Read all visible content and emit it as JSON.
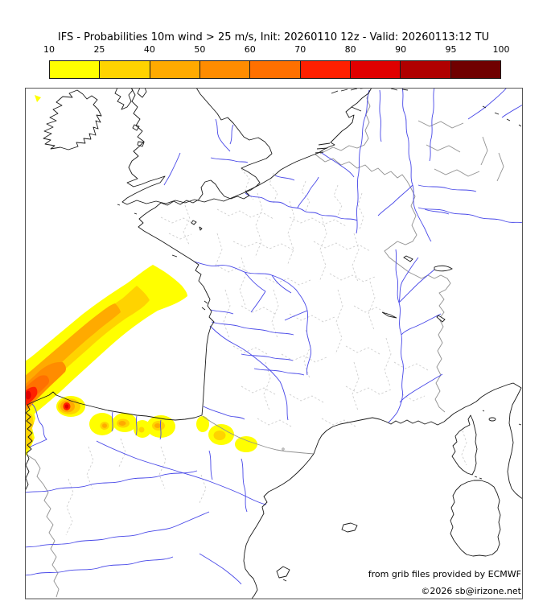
{
  "title": "IFS - Probabilities 10m wind > 25 m/s, Init: 20260110 12z - Valid: 20260113:12 TU",
  "colorbar": {
    "tick_labels": [
      "10",
      "25",
      "40",
      "50",
      "60",
      "70",
      "80",
      "90",
      "95",
      "100"
    ],
    "segment_colors": [
      "#ffff00",
      "#ffd300",
      "#ffaa00",
      "#ff8c00",
      "#ff7000",
      "#ff2000",
      "#e00000",
      "#b00000",
      "#700000"
    ]
  },
  "contour_levels": {
    "values": [
      10,
      25,
      40,
      50,
      60,
      70,
      80
    ],
    "colors": [
      "#ffff00",
      "#ffd300",
      "#ffaa00",
      "#ff8c00",
      "#ff7000",
      "#ff2000",
      "#e00000"
    ]
  },
  "attribution": {
    "source": "from grib files provided by ECMWF",
    "copyright": "©2026 sb@irizone.net"
  },
  "map_colors": {
    "coastline": "#1a1a1a",
    "rivers": "#4848e8",
    "country_borders": "#909090",
    "department_borders": "#c9c9c9"
  }
}
